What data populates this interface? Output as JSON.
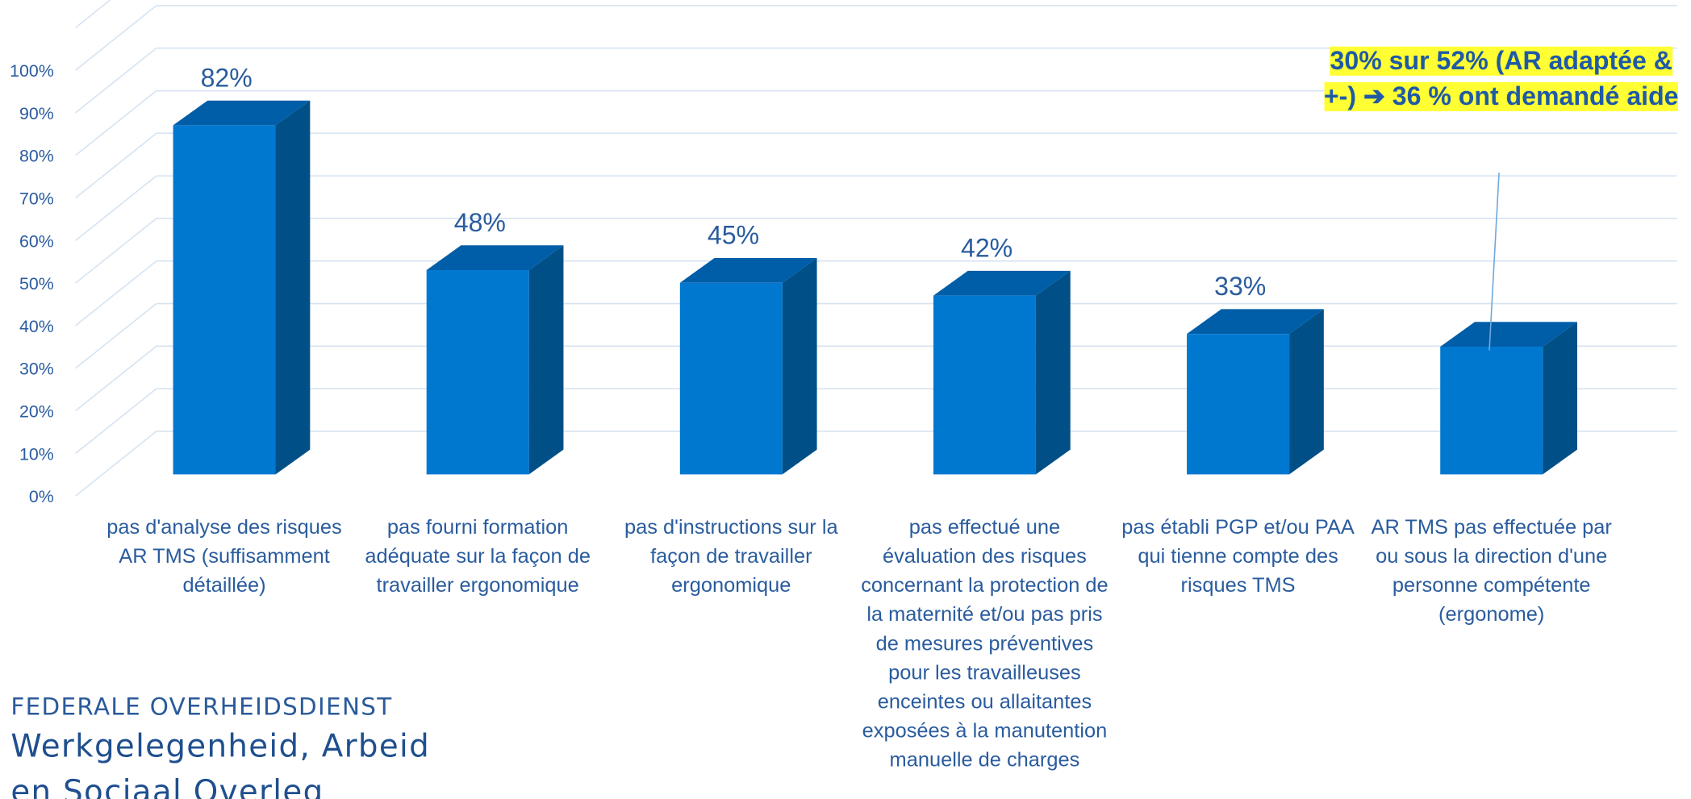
{
  "chart_data": {
    "type": "bar",
    "categories": [
      "pas d'analyse des risques AR TMS (suffisamment détaillée)",
      "pas fourni formation adéquate sur la façon de travailler ergonomique",
      "pas d'instructions sur la façon de travailler ergonomique",
      "pas effectué une évaluation des risques concernant la protection de la maternité et/ou pas pris de mesures préventives pour les travailleuses enceintes ou allaitantes exposées à la manutention manuelle de charges",
      "pas établi PGP et/ou PAA qui tienne compte des risques TMS",
      "AR TMS pas  effectuée par ou sous la direction d'une personne compétente (ergonome)"
    ],
    "values": [
      82,
      48,
      45,
      42,
      33,
      30
    ],
    "value_labels": [
      "82%",
      "48%",
      "45%",
      "42%",
      "33%",
      null
    ],
    "colors": {
      "front": "#0078d0",
      "side": "#004f87",
      "top": "#005ea8"
    },
    "ylim": [
      0,
      110
    ],
    "yticks": [
      {
        "value": 0,
        "label": "0%"
      },
      {
        "value": 10,
        "label": "10%"
      },
      {
        "value": 20,
        "label": "20%"
      },
      {
        "value": 30,
        "label": "30%"
      },
      {
        "value": 40,
        "label": "40%"
      },
      {
        "value": 50,
        "label": "50%"
      },
      {
        "value": 60,
        "label": "60%"
      },
      {
        "value": 70,
        "label": "70%"
      },
      {
        "value": 80,
        "label": "80%"
      },
      {
        "value": 90,
        "label": "90%"
      },
      {
        "value": 100,
        "label": "100%"
      }
    ],
    "grid": true,
    "annotation": "30% sur 52% (AR adaptée & +-) ➔ 36 % ont demandé aide"
  },
  "logo": {
    "line1": "FEDERALE OVERHEIDSDIENST",
    "line2": "Werkgelegenheid, Arbeid",
    "line3": "en Sociaal Overleg"
  }
}
